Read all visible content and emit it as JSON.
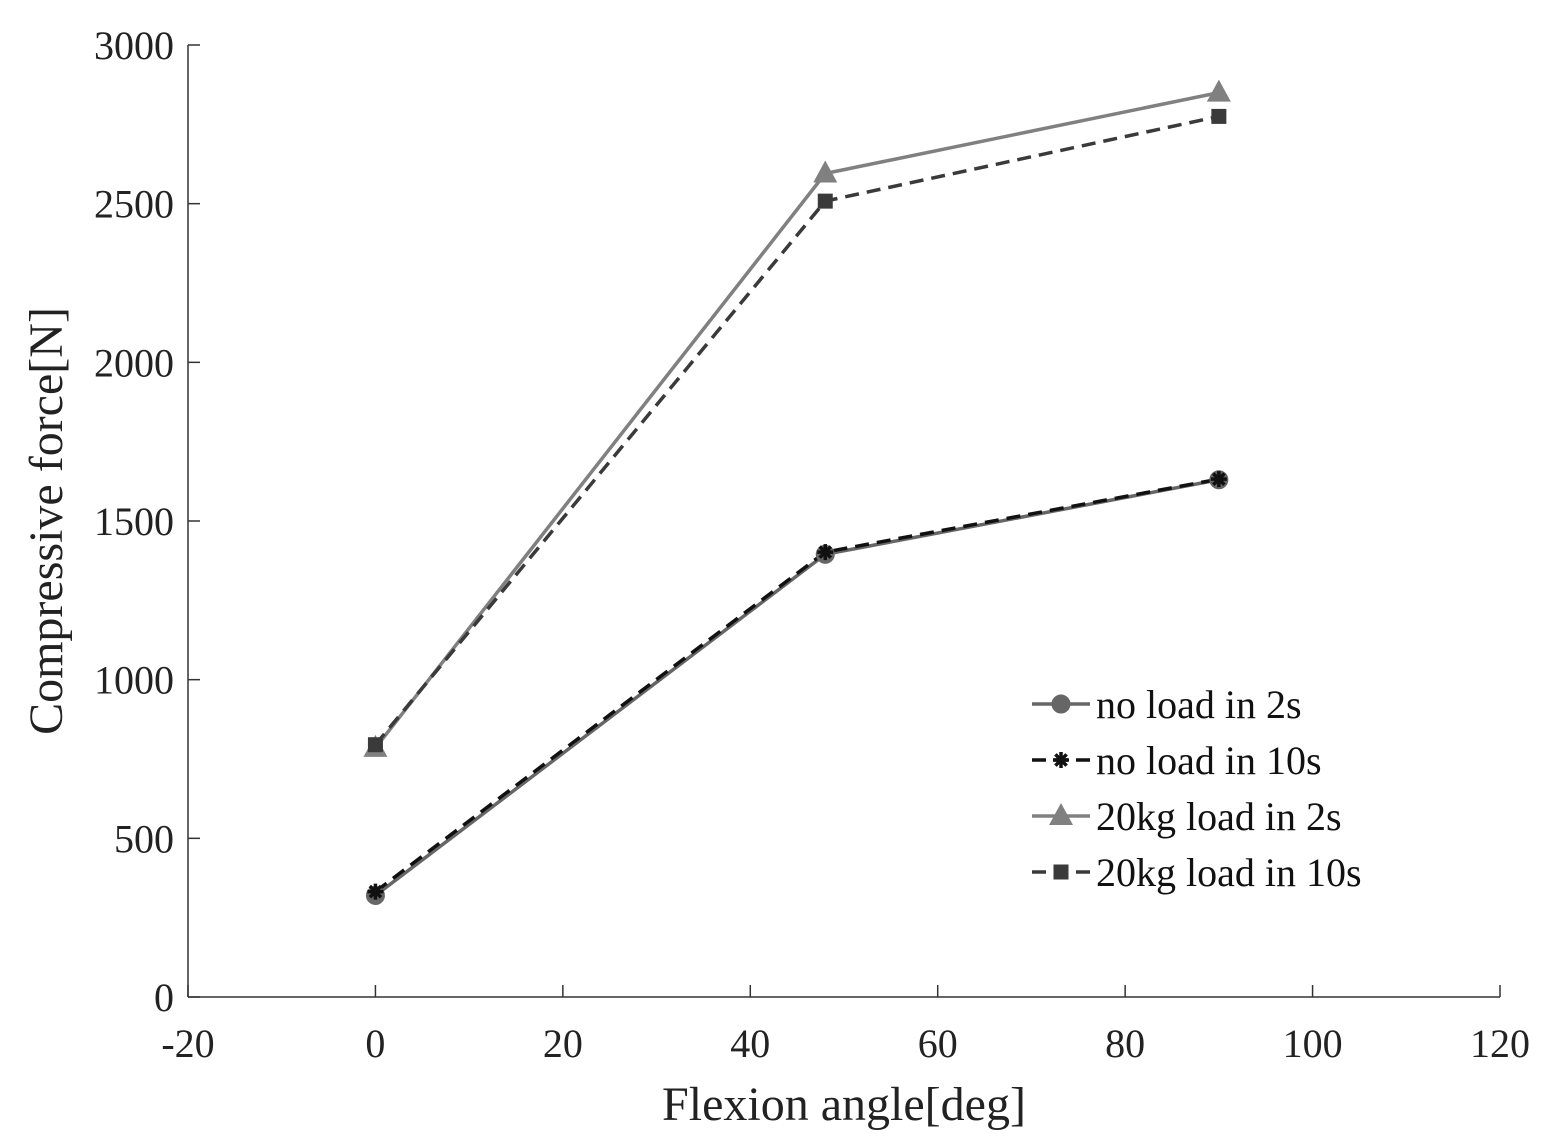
{
  "chart_data": {
    "type": "line",
    "title": "",
    "xlabel": "Flexion angle[deg]",
    "ylabel": "Compressive force[N]",
    "xlim": [
      -20,
      120
    ],
    "ylim": [
      0,
      3000
    ],
    "xticks": [
      -20,
      0,
      20,
      40,
      60,
      80,
      100,
      120
    ],
    "yticks": [
      0,
      500,
      1000,
      1500,
      2000,
      2500,
      3000
    ],
    "xtick_labels": [
      "-20",
      "0",
      "20",
      "40",
      "60",
      "80",
      "100",
      "120"
    ],
    "ytick_labels": [
      "0",
      "500",
      "1000",
      "1500",
      "2000",
      "2500",
      "3000"
    ],
    "grid": false,
    "legend_position": "lower-right",
    "series": [
      {
        "name": "no load in 2s",
        "x": [
          0,
          48,
          90
        ],
        "y": [
          320,
          1395,
          1630
        ],
        "color": "#666666",
        "dash": "solid",
        "marker": "circle"
      },
      {
        "name": "no load in 10s",
        "x": [
          0,
          48,
          90
        ],
        "y": [
          332,
          1402,
          1632
        ],
        "color": "#111111",
        "dash": "dashed",
        "marker": "asterisk"
      },
      {
        "name": "20kg load in 2s",
        "x": [
          0,
          48,
          90
        ],
        "y": [
          785,
          2595,
          2850
        ],
        "color": "#808080",
        "dash": "solid",
        "marker": "triangle"
      },
      {
        "name": "20kg load in 10s",
        "x": [
          0,
          48,
          90
        ],
        "y": [
          795,
          2508,
          2775
        ],
        "color": "#3a3a3a",
        "dash": "dashed",
        "marker": "square"
      }
    ]
  }
}
